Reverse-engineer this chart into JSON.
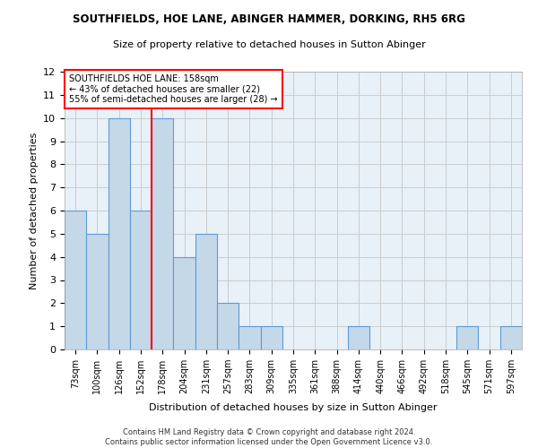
{
  "title": "SOUTHFIELDS, HOE LANE, ABINGER HAMMER, DORKING, RH5 6RG",
  "subtitle": "Size of property relative to detached houses in Sutton Abinger",
  "xlabel": "Distribution of detached houses by size in Sutton Abinger",
  "ylabel": "Number of detached properties",
  "bar_values": [
    6,
    5,
    10,
    6,
    10,
    4,
    5,
    2,
    1,
    1,
    0,
    0,
    0,
    1,
    0,
    0,
    0,
    0,
    1,
    0,
    1
  ],
  "bin_labels": [
    "73sqm",
    "100sqm",
    "126sqm",
    "152sqm",
    "178sqm",
    "204sqm",
    "231sqm",
    "257sqm",
    "283sqm",
    "309sqm",
    "335sqm",
    "361sqm",
    "388sqm",
    "414sqm",
    "440sqm",
    "466sqm",
    "492sqm",
    "518sqm",
    "545sqm",
    "571sqm",
    "597sqm"
  ],
  "bar_color": "#C5D8E8",
  "bar_edge_color": "#5B9BD5",
  "vline_x_idx": 3,
  "vline_color": "red",
  "annotation_text": "SOUTHFIELDS HOE LANE: 158sqm\n← 43% of detached houses are smaller (22)\n55% of semi-detached houses are larger (28) →",
  "annotation_box_color": "white",
  "annotation_box_edge_color": "red",
  "ylim": [
    0,
    12
  ],
  "yticks": [
    0,
    1,
    2,
    3,
    4,
    5,
    6,
    7,
    8,
    9,
    10,
    11,
    12
  ],
  "grid_color": "#CCCCCC",
  "background_color": "#E8F0F8",
  "footnote": "Contains HM Land Registry data © Crown copyright and database right 2024.\nContains public sector information licensed under the Open Government Licence v3.0."
}
